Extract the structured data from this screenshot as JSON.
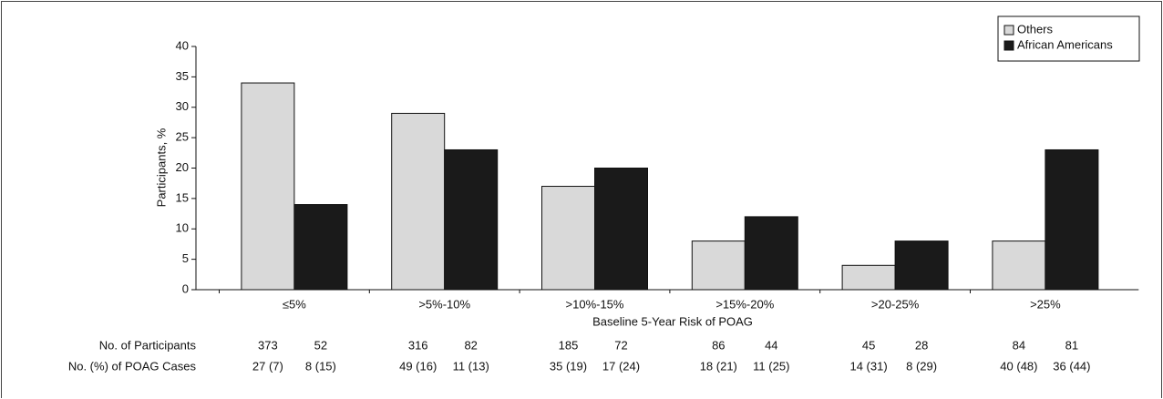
{
  "chart_data": {
    "type": "bar",
    "y_label": "Participants, %",
    "x_label": "Baseline 5-Year Risk of POAG",
    "categories": [
      "≤5%",
      ">5%-10%",
      ">10%-15%",
      ">15%-20%",
      ">20-25%",
      ">25%"
    ],
    "series": [
      {
        "name": "Others",
        "color": "#d9d9d9",
        "values": [
          34,
          29,
          17,
          8,
          4,
          8
        ]
      },
      {
        "name": "African Americans",
        "color": "#1a1a1a",
        "values": [
          14,
          23,
          20,
          12,
          8,
          23
        ]
      }
    ],
    "ylim": [
      0,
      40
    ],
    "yticks": [
      0,
      5,
      10,
      15,
      20,
      25,
      30,
      35,
      40
    ],
    "legend": "upper right",
    "table": [
      {
        "label": "No. of Participants",
        "values": [
          [
            "373",
            "52"
          ],
          [
            "316",
            "82"
          ],
          [
            "185",
            "72"
          ],
          [
            "86",
            "44"
          ],
          [
            "45",
            "28"
          ],
          [
            "84",
            "81"
          ]
        ]
      },
      {
        "label": "No. (%) of POAG Cases",
        "values": [
          [
            "27 (7)",
            "8 (15)"
          ],
          [
            "49 (16)",
            "11 (13)"
          ],
          [
            "35 (19)",
            "17 (24)"
          ],
          [
            "18 (21)",
            "11 (25)"
          ],
          [
            "14 (31)",
            "8 (29)"
          ],
          [
            "40 (48)",
            "36 (44)"
          ]
        ]
      }
    ]
  }
}
